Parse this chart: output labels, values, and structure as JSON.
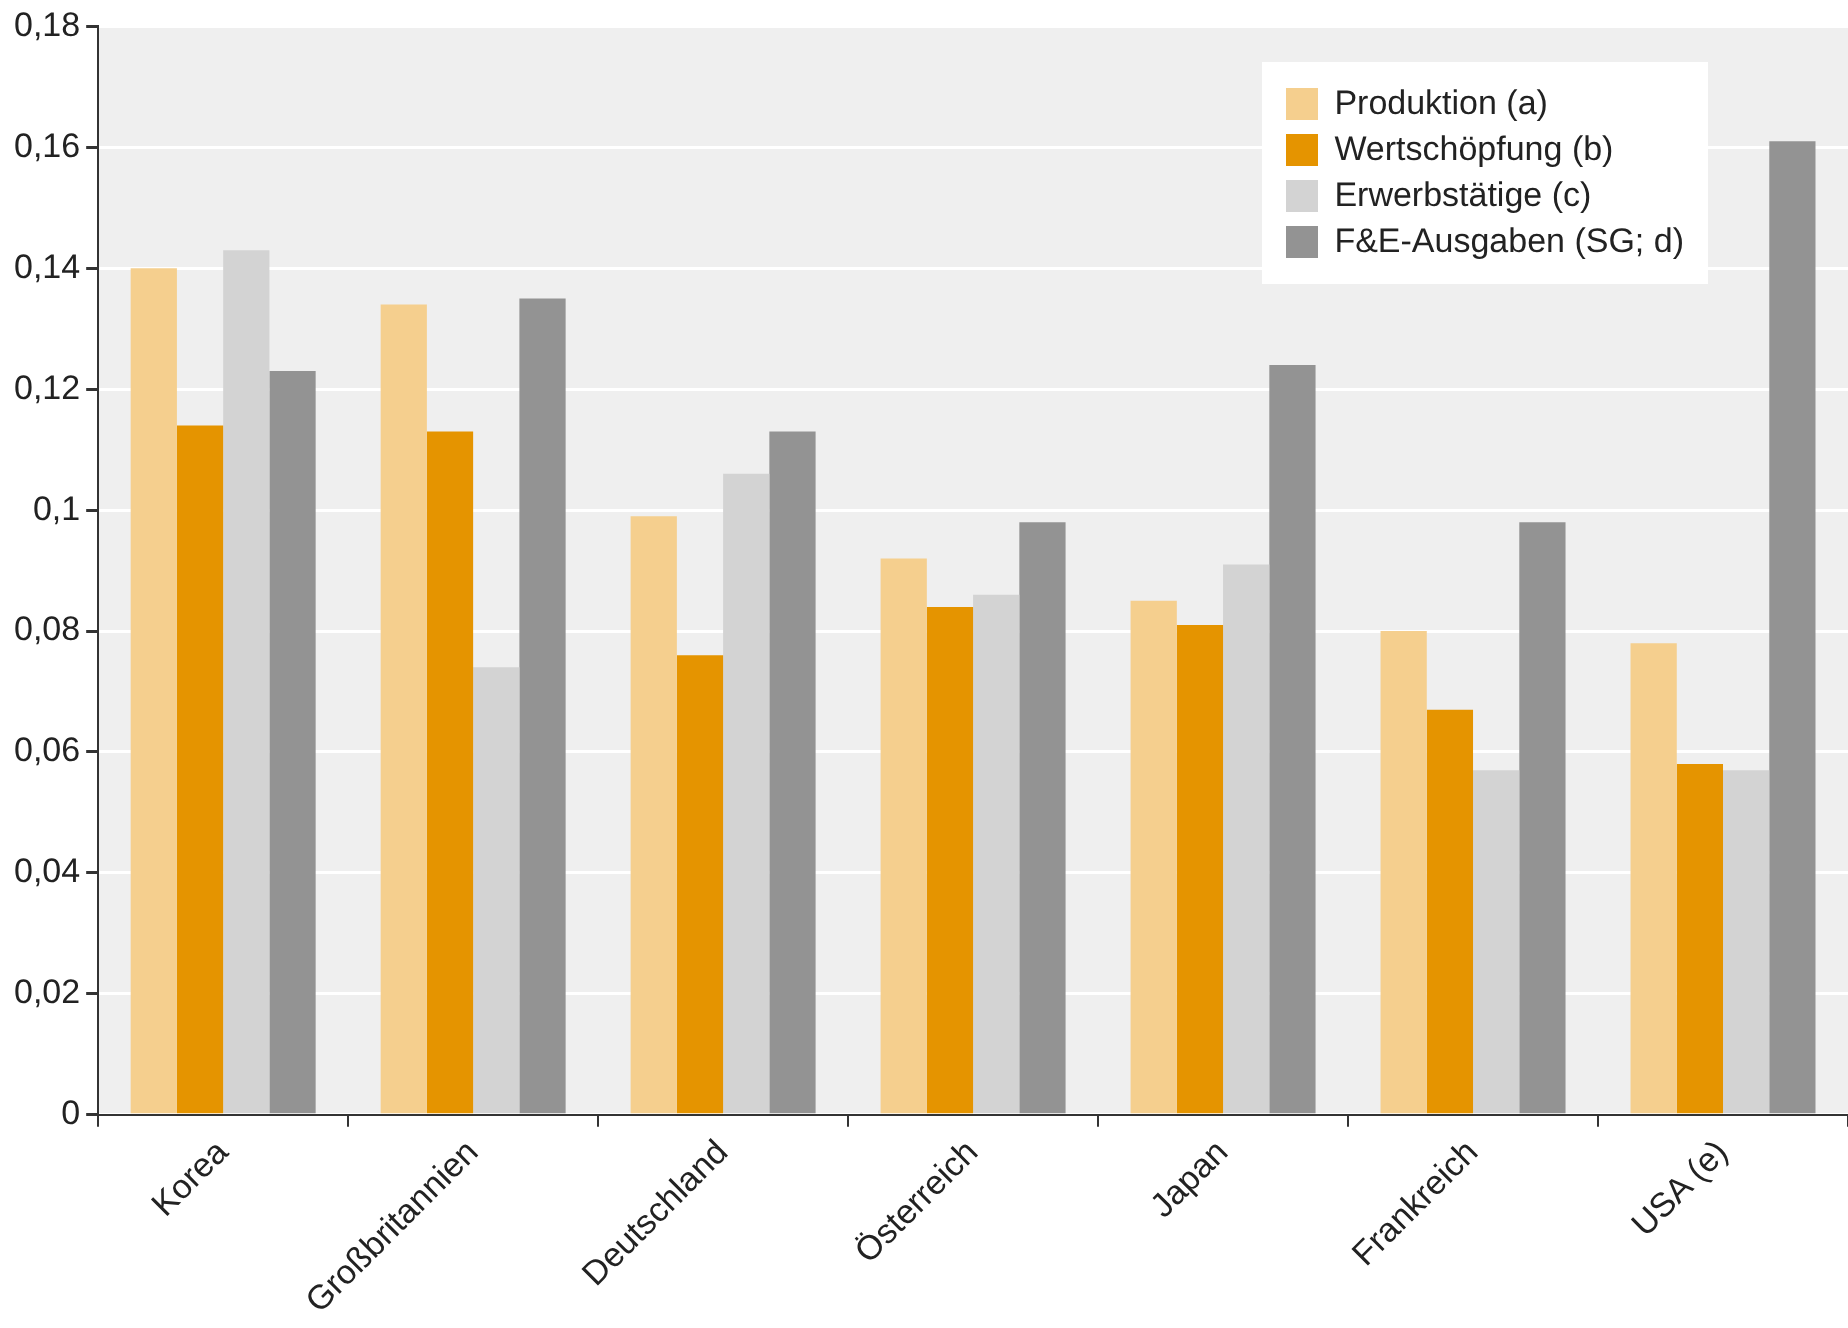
{
  "chart_data": {
    "type": "bar",
    "categories": [
      "Korea",
      "Großbritannien",
      "Deutschland",
      "Österreich",
      "Japan",
      "Frankreich",
      "USA (e)"
    ],
    "series": [
      {
        "name": "Produktion (a)",
        "color": "#f5cf8e",
        "values": [
          0.14,
          0.134,
          0.099,
          0.092,
          0.085,
          0.08,
          0.078
        ]
      },
      {
        "name": "Wertschöpfung (b)",
        "color": "#e59400",
        "values": [
          0.114,
          0.113,
          0.076,
          0.084,
          0.081,
          0.067,
          0.058
        ]
      },
      {
        "name": "Erwerbstätige (c)",
        "color": "#d3d3d3",
        "values": [
          0.143,
          0.074,
          0.106,
          0.086,
          0.091,
          0.057,
          0.057
        ]
      },
      {
        "name": "F&E-Ausgaben (SG; d)",
        "color": "#939393",
        "values": [
          0.123,
          0.135,
          0.113,
          0.098,
          0.124,
          0.098,
          0.161
        ]
      }
    ],
    "ylim": [
      0,
      0.18
    ],
    "yticks": [
      0,
      {
        "value": 0.02,
        "label": "0,02"
      },
      {
        "value": 0.04,
        "label": "0,04"
      },
      {
        "value": 0.06,
        "label": "0,06"
      },
      {
        "value": 0.08,
        "label": "0,08"
      },
      {
        "value": 0.1,
        "label": "0,1"
      },
      {
        "value": 0.12,
        "label": "0,12"
      },
      {
        "value": 0.14,
        "label": "0,14"
      },
      {
        "value": 0.16,
        "label": "0,16"
      },
      {
        "value": 0.18,
        "label": "0,18"
      }
    ],
    "grid": "y",
    "legend": "top right"
  }
}
